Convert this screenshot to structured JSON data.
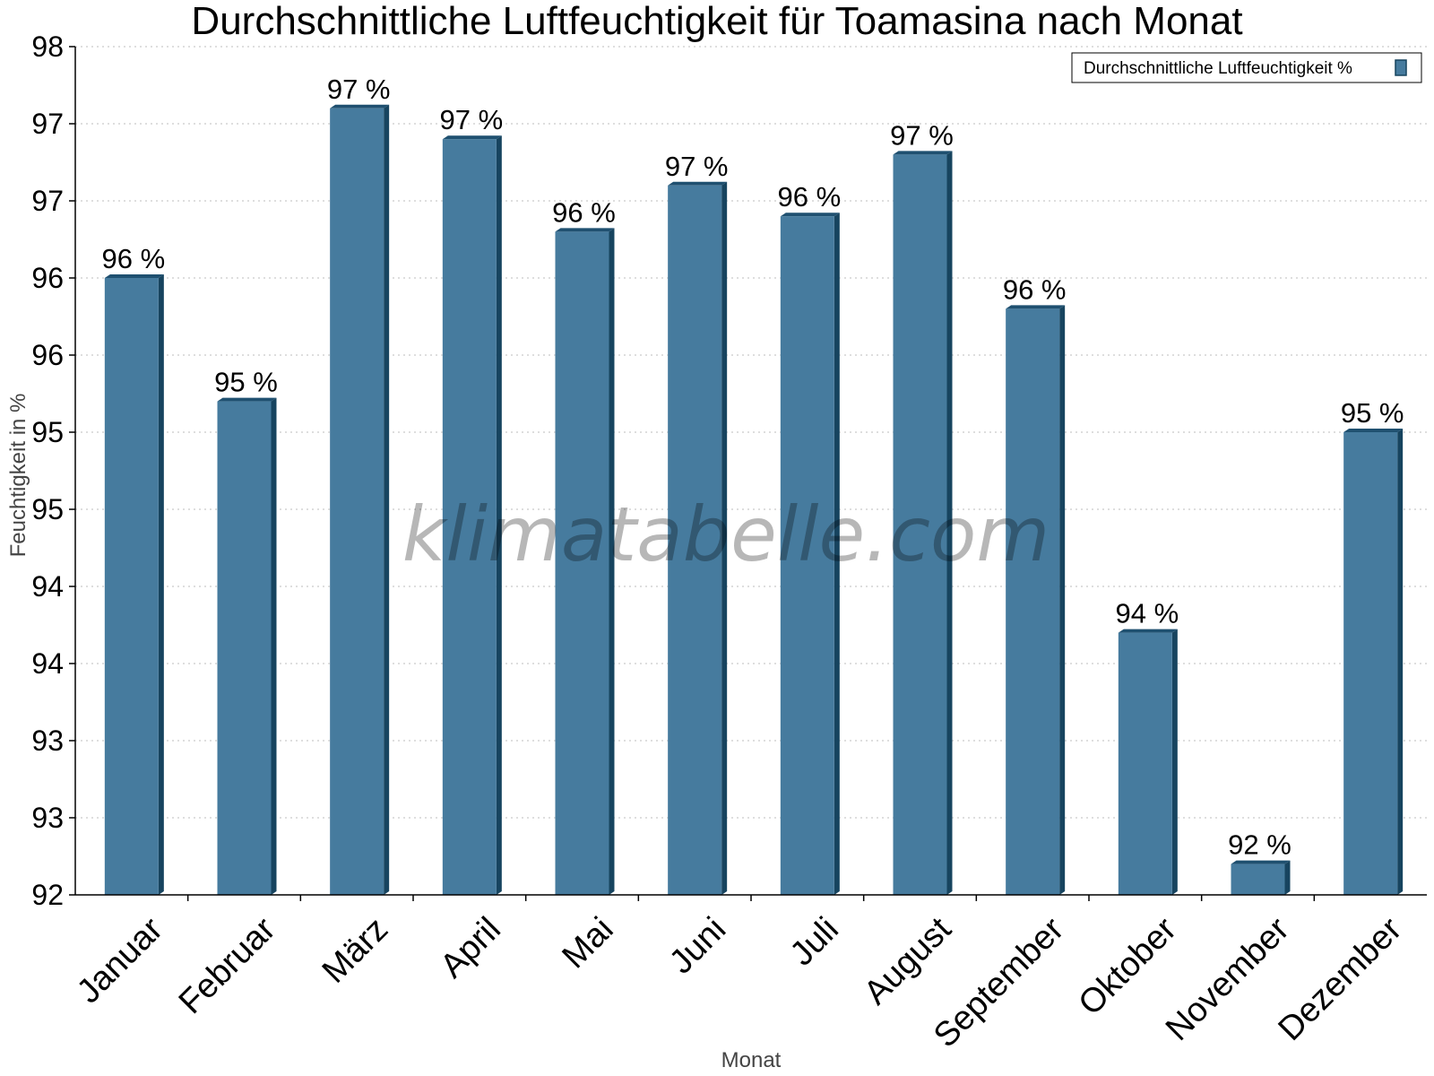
{
  "chart_data": {
    "type": "bar",
    "title": "Durchschnittliche Luftfeuchtigkeit für Toamasina nach Monat",
    "xlabel": "Monat",
    "ylabel": "Feuchtigkeit in %",
    "ylim": [
      92,
      97.5
    ],
    "ytick_values": [
      92,
      92.5,
      93,
      93.5,
      94,
      94.5,
      95,
      95.5,
      96,
      96.5,
      97,
      97.5
    ],
    "ytick_labels": [
      "92",
      "93",
      "93",
      "94",
      "94",
      "95",
      "95",
      "96",
      "96",
      "97",
      "97",
      "98"
    ],
    "categories": [
      "Januar",
      "Februar",
      "März",
      "April",
      "Mai",
      "Juni",
      "Juli",
      "August",
      "September",
      "Oktober",
      "November",
      "Dezember"
    ],
    "series": [
      {
        "name": "Durchschnittliche Luftfeuchtigkeit %",
        "values": [
          96.0,
          95.2,
          97.1,
          96.9,
          96.3,
          96.6,
          96.4,
          96.8,
          95.8,
          93.7,
          92.2,
          95.0
        ],
        "labels": [
          "96 %",
          "95 %",
          "97 %",
          "97 %",
          "96 %",
          "97 %",
          "96 %",
          "97 %",
          "96 %",
          "94 %",
          "92 %",
          "95 %"
        ],
        "color": "#467b9e"
      }
    ],
    "grid": true,
    "legend_position": "top-right"
  },
  "watermark": "klimatabelle.com",
  "colors": {
    "bar_front": "#467b9e",
    "bar_side": "#17445f",
    "bar_top": "#1f5070"
  }
}
